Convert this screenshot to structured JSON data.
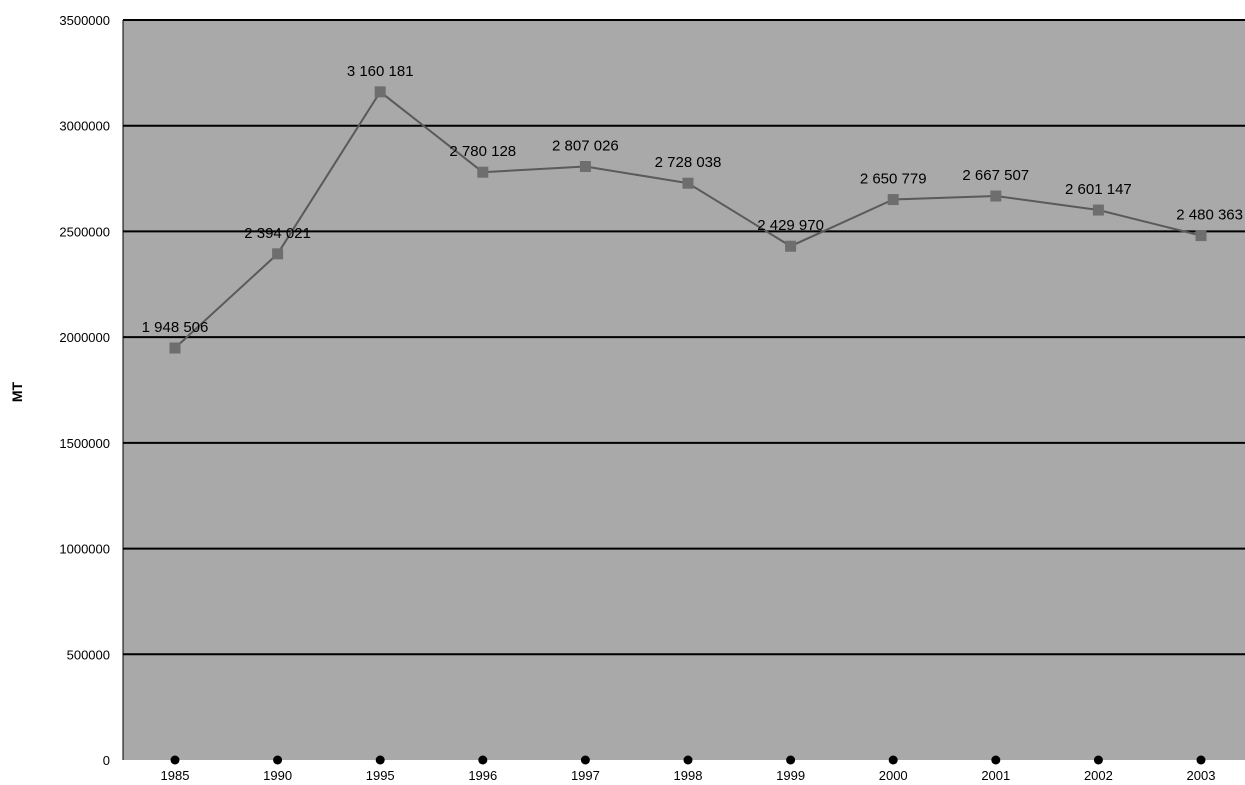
{
  "chart_data": {
    "type": "line",
    "title": "",
    "xlabel": "",
    "ylabel": "MT",
    "ylim": [
      0,
      3500000
    ],
    "yticks": [
      "0",
      "500000",
      "1000000",
      "1500000",
      "2000000",
      "2500000",
      "3000000",
      "3500000"
    ],
    "categories": [
      "1985",
      "1990",
      "1995",
      "1996",
      "1997",
      "1998",
      "1999",
      "2000",
      "2001",
      "2002",
      "2003"
    ],
    "series": [
      {
        "values": [
          1948506,
          2394021,
          3160181,
          2780128,
          2807026,
          2728038,
          2429970,
          2650779,
          2667507,
          2601147,
          2480363
        ],
        "labels": [
          "1 948 506",
          "2 394 021",
          "3 160 181",
          "2 780 128",
          "2 807 026",
          "2 728 038",
          "2 429 970",
          "2 650 779",
          "2 667 507",
          "2 601 147",
          "2 480 363"
        ]
      }
    ],
    "grid": true,
    "legend": "none",
    "colors": {
      "plot_background": "#a9a9a9",
      "gridline": "#000000",
      "line": "#5a5a5a",
      "marker": "#6e6e6e"
    }
  }
}
